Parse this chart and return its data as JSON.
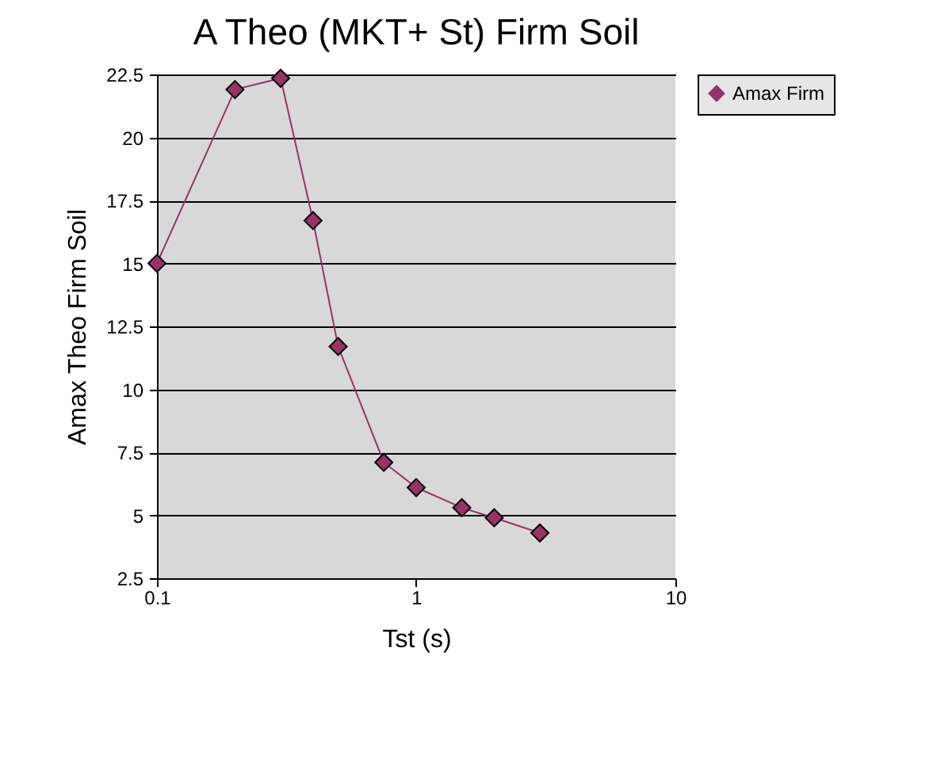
{
  "chart_data": {
    "type": "line",
    "title": "A Theo (MKT+ St) Firm Soil",
    "xlabel": "Tst (s)",
    "ylabel": "Amax Theo Firm Soil",
    "x": [
      0.1,
      0.2,
      0.3,
      0.4,
      0.5,
      0.75,
      1.0,
      1.5,
      2.0,
      3.0
    ],
    "series": [
      {
        "name": "Amax Firm",
        "color": "#993366",
        "values": [
          15,
          21.9,
          22.35,
          16.7,
          11.7,
          7.1,
          6.1,
          5.3,
          4.9,
          4.3
        ]
      }
    ],
    "log": "x",
    "xlim": [
      0.1,
      10
    ],
    "xticks": [
      0.1,
      1,
      10
    ],
    "ylim": [
      2.5,
      22.5
    ],
    "yticks": [
      2.5,
      5,
      7.5,
      10,
      12.5,
      15,
      17.5,
      20,
      22.5
    ],
    "grid": "y",
    "legend": "right",
    "marker": "diamond",
    "line_style": "solid"
  }
}
